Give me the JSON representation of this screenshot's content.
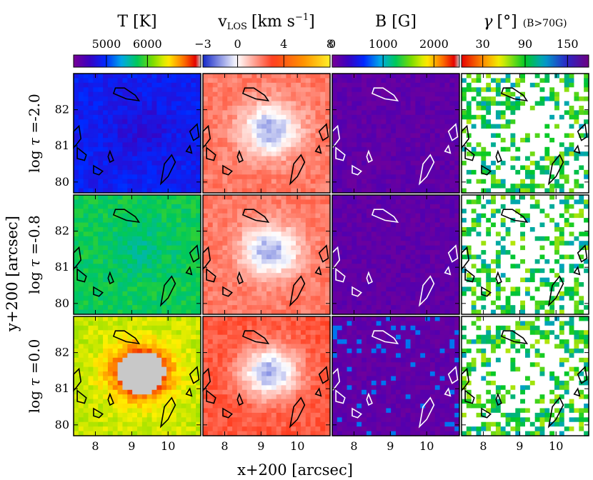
{
  "chart_data": {
    "type": "heatmap",
    "layout": "3x4 panel grid",
    "columns": [
      {
        "key": "T",
        "title": "T [K]",
        "colorbar": "rainbow",
        "range": [
          4200,
          7300
        ],
        "tick_labels": [
          {
            "label": "5000",
            "value": 5000
          },
          {
            "label": "6000",
            "value": 6000
          }
        ]
      },
      {
        "key": "vlos",
        "title_main": "v",
        "title_sub": "LOS",
        "title_units": "[km s",
        "title_exp": "−1",
        "title_close": "]",
        "colorbar": "blue-white-red-yellow",
        "range": [
          -3,
          8
        ],
        "tick_labels": [
          {
            "label": "−3",
            "value": -3
          },
          {
            "label": "0",
            "value": 0
          },
          {
            "label": "4",
            "value": 4
          },
          {
            "label": "8",
            "value": 8
          }
        ]
      },
      {
        "key": "B",
        "title": "B [G]",
        "colorbar": "rainbow",
        "range": [
          0,
          2500
        ],
        "tick_labels": [
          {
            "label": "0",
            "value": 0
          },
          {
            "label": "1000",
            "value": 1000
          },
          {
            "label": "2000",
            "value": 2000
          }
        ]
      },
      {
        "key": "gamma",
        "title_main": "γ",
        "title_units": "[°]",
        "title_note": "(B>70G)",
        "colorbar": "red-yellow-green-blue-purple",
        "range": [
          0,
          180
        ],
        "tick_labels": [
          {
            "label": "30",
            "value": 30
          },
          {
            "label": "90",
            "value": 90
          },
          {
            "label": "150",
            "value": 150
          }
        ]
      }
    ],
    "rows": [
      {
        "label_prefix": "log",
        "label_var": "τ",
        "label_value": " =-2.0",
        "log_tau": -2.0
      },
      {
        "label_prefix": "log",
        "label_var": "τ",
        "label_value": " =-0.8",
        "log_tau": -0.8
      },
      {
        "label_prefix": "log",
        "label_var": "τ",
        "label_value": " =0.0",
        "log_tau": 0.0
      }
    ],
    "xlabel": "x+200 [arcsec]",
    "ylabel": "y+200 [arcsec]",
    "xlim": [
      7.4,
      10.9
    ],
    "ylim": [
      79.7,
      83.0
    ],
    "x_ticks": [
      {
        "label": "8",
        "value": 8
      },
      {
        "label": "9",
        "value": 9
      },
      {
        "label": "10",
        "value": 10
      }
    ],
    "y_ticks": [
      {
        "label": "80",
        "value": 80
      },
      {
        "label": "81",
        "value": 81
      },
      {
        "label": "82",
        "value": 82
      }
    ],
    "contours": [
      [
        [
          8.5,
          82.45
        ],
        [
          8.85,
          82.3
        ],
        [
          9.2,
          82.25
        ],
        [
          9.1,
          82.4
        ],
        [
          8.8,
          82.6
        ],
        [
          8.55,
          82.6
        ]
      ],
      [
        [
          7.4,
          81.4
        ],
        [
          7.55,
          81.55
        ],
        [
          7.6,
          81.2
        ],
        [
          7.45,
          81.0
        ],
        [
          7.4,
          80.95
        ]
      ],
      [
        [
          7.5,
          80.95
        ],
        [
          7.75,
          80.75
        ],
        [
          7.7,
          80.6
        ],
        [
          7.5,
          80.65
        ]
      ],
      [
        [
          7.95,
          80.45
        ],
        [
          8.2,
          80.3
        ],
        [
          8.1,
          80.2
        ],
        [
          7.95,
          80.25
        ]
      ],
      [
        [
          8.4,
          80.85
        ],
        [
          8.5,
          80.6
        ],
        [
          8.4,
          80.55
        ],
        [
          8.35,
          80.7
        ]
      ],
      [
        [
          9.9,
          80.5
        ],
        [
          10.1,
          80.75
        ],
        [
          10.2,
          80.55
        ],
        [
          10.0,
          80.15
        ],
        [
          9.8,
          79.95
        ]
      ],
      [
        [
          10.6,
          81.4
        ],
        [
          10.8,
          81.6
        ],
        [
          10.85,
          81.25
        ],
        [
          10.7,
          81.15
        ]
      ],
      [
        [
          10.5,
          80.85
        ],
        [
          10.6,
          81.0
        ],
        [
          10.65,
          80.8
        ]
      ]
    ]
  }
}
